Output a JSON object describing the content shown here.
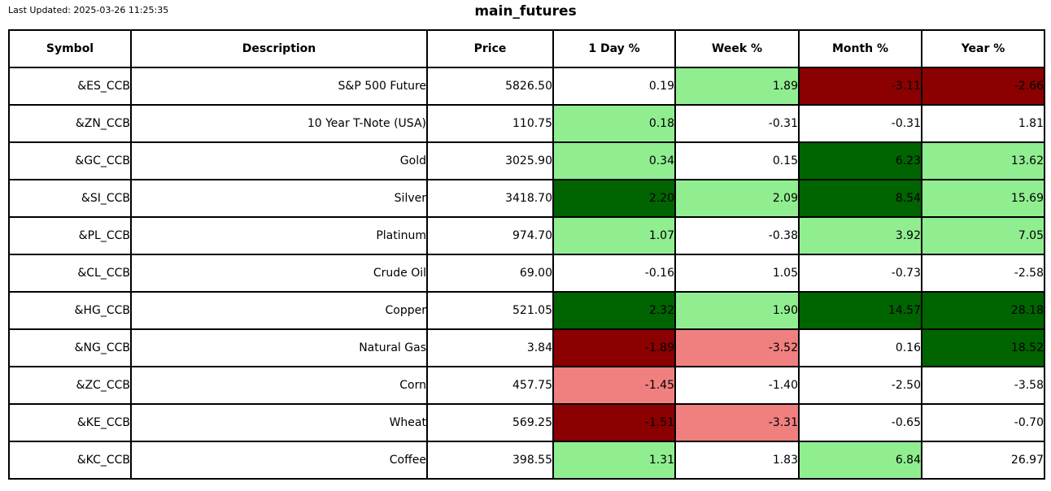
{
  "chart_data": {
    "type": "table",
    "title": "main_futures",
    "last_updated": "Last Updated: 2025-03-26 11:25:35",
    "columns": [
      "Symbol",
      "Description",
      "Price",
      "1 Day %",
      "Week %",
      "Month %",
      "Year %"
    ],
    "tone_colors": {
      "strong_up": "#006400",
      "up": "#90EE90",
      "neutral": "#FFFFFF",
      "down": "#F08080",
      "strong_down": "#8B0000"
    },
    "rows": [
      {
        "symbol": "&ES_CCB",
        "description": "S&P 500 Future",
        "price": "5826.50",
        "pct": [
          {
            "value": "0.19",
            "tone": "neutral"
          },
          {
            "value": "1.89",
            "tone": "up"
          },
          {
            "value": "-3.11",
            "tone": "strong_down"
          },
          {
            "value": "-2.66",
            "tone": "strong_down"
          }
        ]
      },
      {
        "symbol": "&ZN_CCB",
        "description": "10 Year T-Note (USA)",
        "price": "110.75",
        "pct": [
          {
            "value": "0.18",
            "tone": "up"
          },
          {
            "value": "-0.31",
            "tone": "neutral"
          },
          {
            "value": "-0.31",
            "tone": "neutral"
          },
          {
            "value": "1.81",
            "tone": "neutral"
          }
        ]
      },
      {
        "symbol": "&GC_CCB",
        "description": "Gold",
        "price": "3025.90",
        "pct": [
          {
            "value": "0.34",
            "tone": "up"
          },
          {
            "value": "0.15",
            "tone": "neutral"
          },
          {
            "value": "6.23",
            "tone": "strong_up"
          },
          {
            "value": "13.62",
            "tone": "up"
          }
        ]
      },
      {
        "symbol": "&SI_CCB",
        "description": "Silver",
        "price": "3418.70",
        "pct": [
          {
            "value": "2.20",
            "tone": "strong_up"
          },
          {
            "value": "2.09",
            "tone": "up"
          },
          {
            "value": "8.54",
            "tone": "strong_up"
          },
          {
            "value": "15.69",
            "tone": "up"
          }
        ]
      },
      {
        "symbol": "&PL_CCB",
        "description": "Platinum",
        "price": "974.70",
        "pct": [
          {
            "value": "1.07",
            "tone": "up"
          },
          {
            "value": "-0.38",
            "tone": "neutral"
          },
          {
            "value": "3.92",
            "tone": "up"
          },
          {
            "value": "7.05",
            "tone": "up"
          }
        ]
      },
      {
        "symbol": "&CL_CCB",
        "description": "Crude Oil",
        "price": "69.00",
        "pct": [
          {
            "value": "-0.16",
            "tone": "neutral"
          },
          {
            "value": "1.05",
            "tone": "neutral"
          },
          {
            "value": "-0.73",
            "tone": "neutral"
          },
          {
            "value": "-2.58",
            "tone": "neutral"
          }
        ]
      },
      {
        "symbol": "&HG_CCB",
        "description": "Copper",
        "price": "521.05",
        "pct": [
          {
            "value": "2.32",
            "tone": "strong_up"
          },
          {
            "value": "1.90",
            "tone": "up"
          },
          {
            "value": "14.57",
            "tone": "strong_up"
          },
          {
            "value": "28.18",
            "tone": "strong_up"
          }
        ]
      },
      {
        "symbol": "&NG_CCB",
        "description": "Natural Gas",
        "price": "3.84",
        "pct": [
          {
            "value": "-1.89",
            "tone": "strong_down"
          },
          {
            "value": "-3.52",
            "tone": "down"
          },
          {
            "value": "0.16",
            "tone": "neutral"
          },
          {
            "value": "18.52",
            "tone": "strong_up"
          }
        ]
      },
      {
        "symbol": "&ZC_CCB",
        "description": "Corn",
        "price": "457.75",
        "pct": [
          {
            "value": "-1.45",
            "tone": "down"
          },
          {
            "value": "-1.40",
            "tone": "neutral"
          },
          {
            "value": "-2.50",
            "tone": "neutral"
          },
          {
            "value": "-3.58",
            "tone": "neutral"
          }
        ]
      },
      {
        "symbol": "&KE_CCB",
        "description": "Wheat",
        "price": "569.25",
        "pct": [
          {
            "value": "-1.51",
            "tone": "strong_down"
          },
          {
            "value": "-3.31",
            "tone": "down"
          },
          {
            "value": "-0.65",
            "tone": "neutral"
          },
          {
            "value": "-0.70",
            "tone": "neutral"
          }
        ]
      },
      {
        "symbol": "&KC_CCB",
        "description": "Coffee",
        "price": "398.55",
        "pct": [
          {
            "value": "1.31",
            "tone": "up"
          },
          {
            "value": "1.83",
            "tone": "neutral"
          },
          {
            "value": "6.84",
            "tone": "up"
          },
          {
            "value": "26.97",
            "tone": "neutral"
          }
        ]
      }
    ]
  }
}
